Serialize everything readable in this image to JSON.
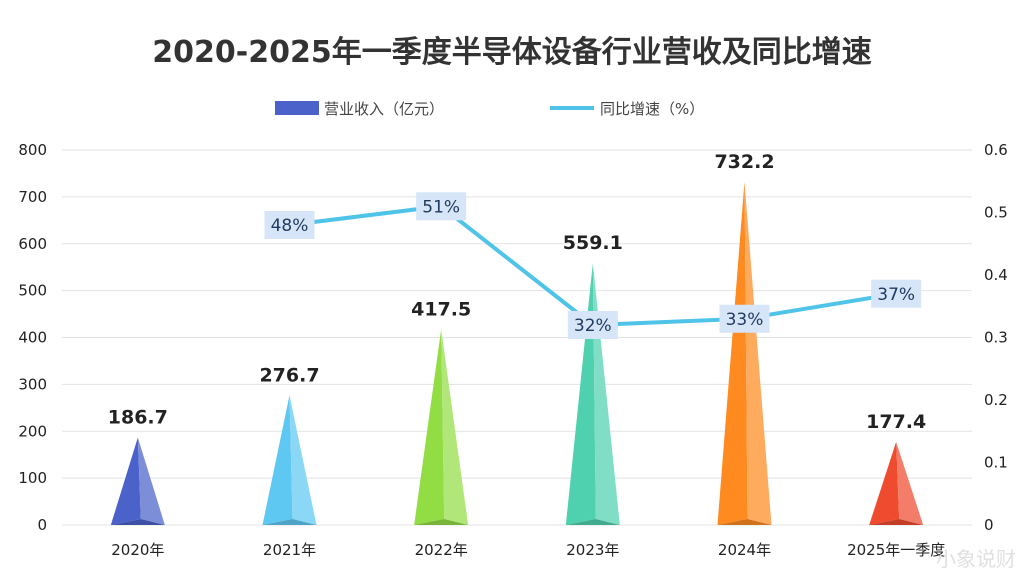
{
  "chart_data": {
    "type": "bar",
    "title": "2020-2025年一季度半导体设备行业营收及同比增速",
    "categories": [
      "2020年",
      "2021年",
      "2022年",
      "2023年",
      "2024年",
      "2025年一季度"
    ],
    "series": [
      {
        "name": "营业收入（亿元）",
        "type": "bar",
        "axis": "left",
        "values": [
          186.7,
          276.7,
          417.5,
          559.1,
          732.2,
          177.4
        ],
        "labels": [
          "186.7",
          "276.7",
          "417.5",
          "559.1",
          "732.2",
          "177.4"
        ],
        "colors": [
          "#4a62c9",
          "#5ec8f2",
          "#92dc44",
          "#4fd1b0",
          "#ff8a1f",
          "#ef4b2f"
        ]
      },
      {
        "name": "同比增速（%）",
        "type": "line",
        "axis": "right",
        "color": "#4fc3e8",
        "values": [
          null,
          0.48,
          0.51,
          0.32,
          0.33,
          0.37
        ],
        "labels": [
          "",
          "48%",
          "51%",
          "32%",
          "33%",
          "37%"
        ]
      }
    ],
    "y_left": {
      "ylim": [
        0,
        800
      ],
      "ticks": [
        "0",
        "100",
        "200",
        "300",
        "400",
        "500",
        "600",
        "700",
        "800"
      ]
    },
    "y_right": {
      "ylim": [
        0,
        0.6
      ],
      "ticks": [
        "0",
        "0.1",
        "0.2",
        "0.3",
        "0.4",
        "0.5",
        "0.6"
      ]
    },
    "grid": true,
    "legend_position": "top-center"
  },
  "watermark": "小象说财"
}
